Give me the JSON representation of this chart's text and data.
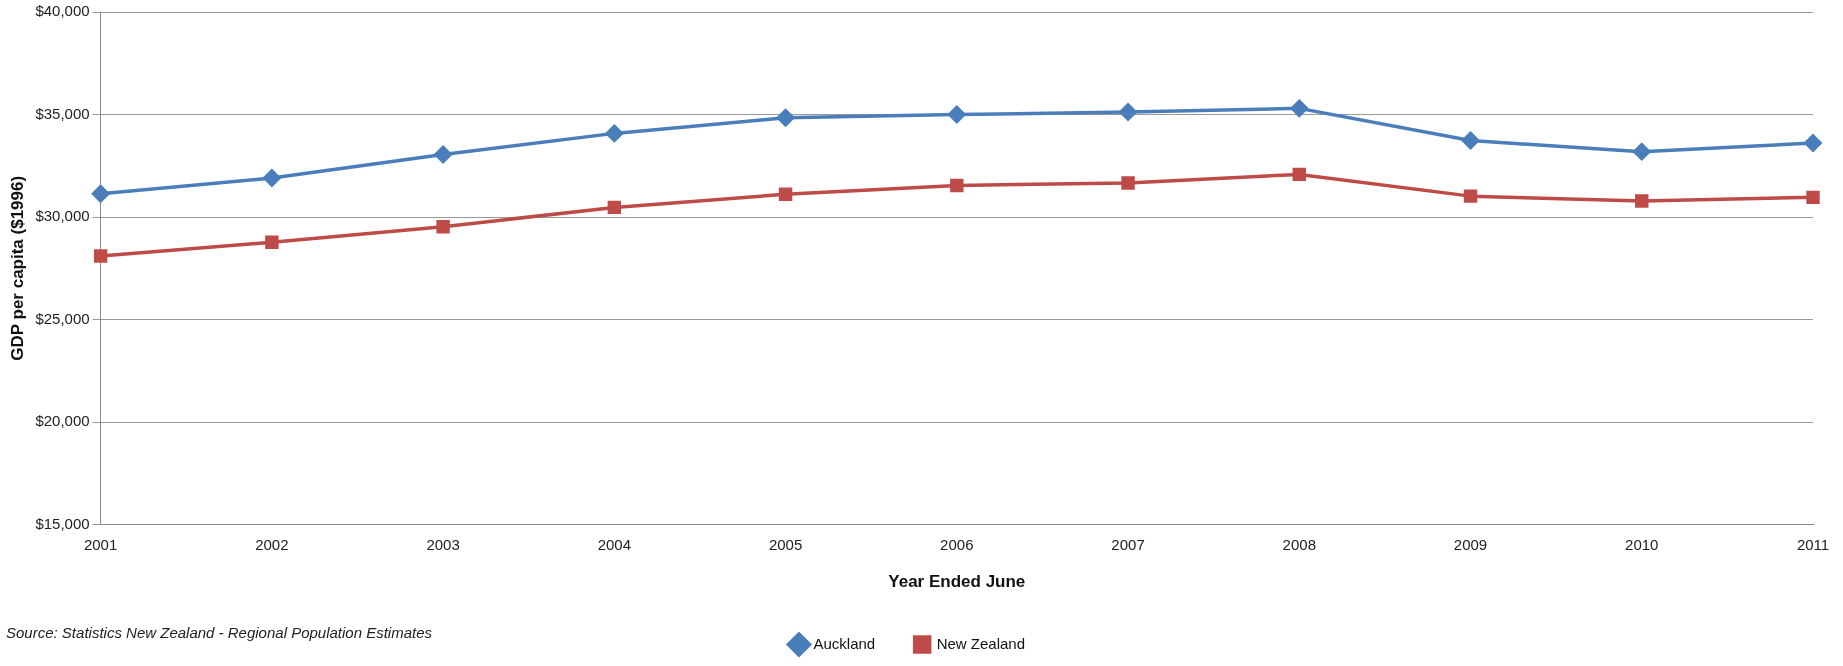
{
  "chart_data": {
    "type": "line",
    "xlabel": "Year Ended June",
    "ylabel": "GDP per capita ($1996)",
    "categories": [
      "2001",
      "2002",
      "2003",
      "2004",
      "2005",
      "2006",
      "2007",
      "2008",
      "2009",
      "2010",
      "2011"
    ],
    "series": [
      {
        "name": "Auckland",
        "color": "#4a7ebb",
        "marker": "diamond",
        "values": [
          31140,
          31900,
          33050,
          34080,
          34840,
          35000,
          35120,
          35300,
          33730,
          33190,
          33610
        ]
      },
      {
        "name": "New Zealand",
        "color": "#be4b48",
        "marker": "square",
        "values": [
          28100,
          28770,
          29530,
          30470,
          31110,
          31540,
          31660,
          32080,
          31020,
          30780,
          30960
        ]
      }
    ],
    "ylim": [
      15000,
      40000
    ],
    "yticks": [
      {
        "value": 15000,
        "label": "$15,000"
      },
      {
        "value": 20000,
        "label": "$20,000"
      },
      {
        "value": 25000,
        "label": "$25,000"
      },
      {
        "value": 30000,
        "label": "$30,000"
      },
      {
        "value": 35000,
        "label": "$35,000"
      },
      {
        "value": 40000,
        "label": "$40,000"
      }
    ],
    "grid": "y",
    "legend": "bottom",
    "line_style": "solid",
    "annotations": [
      "Source: Statistics New Zealand - Regional Population Estimates"
    ]
  }
}
